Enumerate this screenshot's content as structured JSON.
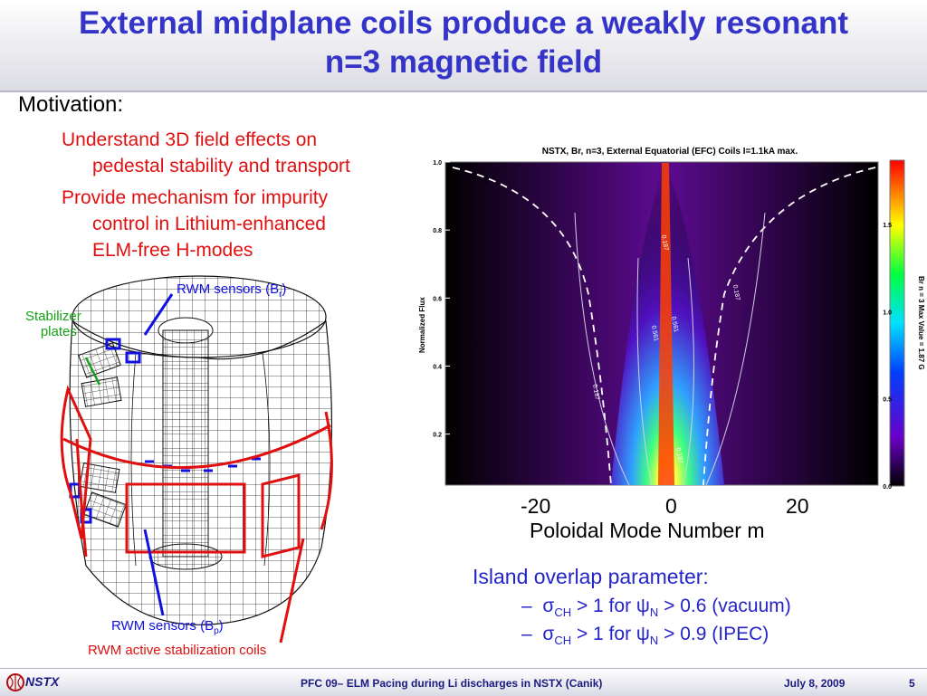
{
  "slide": {
    "title_line1": "External midplane coils produce a weakly resonant",
    "title_line2": "n=3 magnetic field",
    "motivation": "Motivation:",
    "bullets": [
      {
        "line1": "Understand 3D field effects on",
        "line2": "pedestal stability and transport"
      },
      {
        "line1": "Provide mechanism for impurity",
        "line2": "control in Lithium-enhanced",
        "line3": "ELM-free H-modes"
      }
    ],
    "device_labels": {
      "rwm_sensors_br": "RWM sensors (B",
      "br_sub": "r",
      "stabilizer_1": "Stabilizer",
      "stabilizer_2": "plates",
      "rwm_sensors_bp": "RWM sensors (B",
      "bp_sub": "p",
      "close_paren": ")",
      "coils": "RWM active stabilization coils"
    },
    "x_ticks": [
      "-20",
      "0",
      "20"
    ],
    "x_axis_label": "Poloidal Mode Number m",
    "island": {
      "heading": "Island overlap parameter:",
      "items": [
        {
          "dash": "–",
          "sigma": "σ",
          "sub": "CH",
          "gt": " > 1 for ",
          "psi": "ψ",
          "psisub": "N",
          "rest": " > 0.6 (vacuum)"
        },
        {
          "dash": "–",
          "sigma": "σ",
          "sub": "CH",
          "gt": " > 1 for ",
          "psi": "ψ",
          "psisub": "N",
          "rest": " > 0.9 (IPEC)"
        }
      ]
    },
    "footer": {
      "logo": "NSTX",
      "center": "PFC 09– ELM Pacing during Li discharges in NSTX (Canik)",
      "date": "July 8, 2009",
      "page": "5"
    }
  },
  "chart_data": {
    "type": "heatmap",
    "title": "NSTX, Br, n=3, External Equatorial (EFC) Coils I=1.1kA max.",
    "ylabel": "Normalized Flux",
    "y_ticks": [
      "0.2",
      "0.4",
      "0.6",
      "0.8",
      "1.0"
    ],
    "ylim": [
      0.05,
      1.0
    ],
    "colorbar_ticks": [
      "0.0",
      "0.5",
      "1.0",
      "1.5"
    ],
    "colorbar_label": "Br  n = 3  Max Value = 1.87 G",
    "colorbar_range": [
      0.0,
      1.87
    ],
    "contour_labels": [
      "0.187",
      "0.561",
      "0.561",
      "0.187",
      "0.187",
      "0.187"
    ],
    "colors": {
      "low": "#000000",
      "mid": "#5a0a8c",
      "high": "#ff2000"
    }
  }
}
